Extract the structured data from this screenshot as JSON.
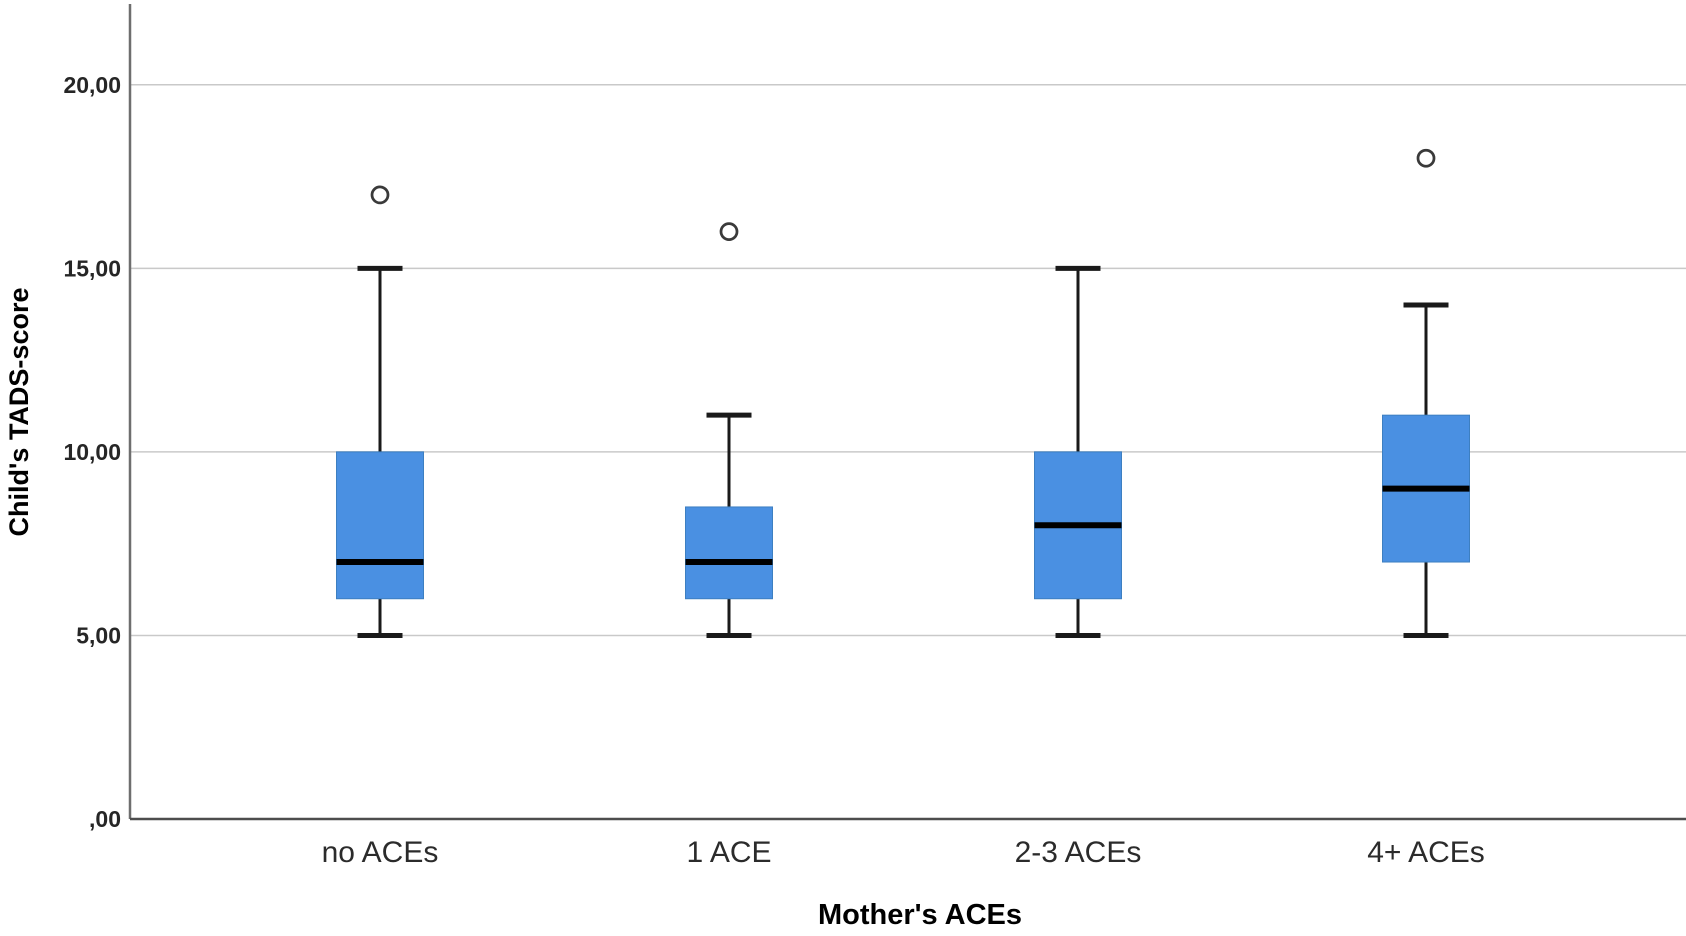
{
  "figure": {
    "background": "#ffffff"
  },
  "chart_data": {
    "type": "boxplot",
    "title": "",
    "xlabel": "Mother's ACEs",
    "ylabel": "Child's TADS-score",
    "categories": [
      "no ACEs",
      "1 ACE",
      "2-3 ACEs",
      "4+ ACEs"
    ],
    "ylim": [
      0,
      22.2
    ],
    "y_ticks": [
      0,
      5,
      10,
      15,
      20
    ],
    "y_tick_labels": [
      ",00",
      "5,00",
      "10,00",
      "15,00",
      "20,00"
    ],
    "grid": "horizontal-gridlines-at-y-ticks",
    "legend": "none",
    "series": [
      {
        "category": "no ACEs",
        "whisker_low": 5,
        "q1": 6,
        "median": 7,
        "q3": 10,
        "whisker_high": 15,
        "outliers": [
          17
        ]
      },
      {
        "category": "1 ACE",
        "whisker_low": 5,
        "q1": 6,
        "median": 7,
        "q3": 8.5,
        "whisker_high": 11,
        "outliers": [
          16
        ]
      },
      {
        "category": "2-3 ACEs",
        "whisker_low": 5,
        "q1": 6,
        "median": 8,
        "q3": 10,
        "whisker_high": 15,
        "outliers": []
      },
      {
        "category": "4+ ACEs",
        "whisker_low": 5,
        "q1": 7,
        "median": 9,
        "q3": 11,
        "whisker_high": 14,
        "outliers": [
          18
        ]
      }
    ],
    "colors": {
      "box_fill": "#4a90e2",
      "box_border": "#3d7fc1",
      "median": "#000000",
      "whisker": "#1a1a1a",
      "outlier_stroke": "#3a3a3a",
      "outlier_fill": "#ffffff",
      "gridline": "#c9c9c9",
      "y_axis_line": "#6e6e6e",
      "x_axis_line": "#4d4d4d",
      "tick_label": "#262626"
    }
  }
}
